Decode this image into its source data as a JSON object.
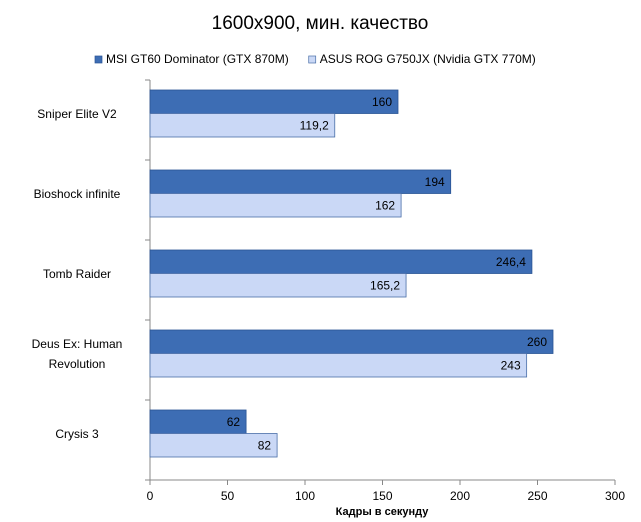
{
  "chart_data": {
    "type": "bar",
    "orientation": "horizontal",
    "title": "1600x900, мин. качество",
    "x_label": "Кадры  в секунду",
    "categories": [
      "Sniper Elite V2",
      "Bioshock infinite",
      "Tomb Raider",
      "Deus Ex: Human Revolution",
      "Crysis 3"
    ],
    "series": [
      {
        "name": "MSI GT60 Dominator (GTX 870M)",
        "color": "#3d6db4",
        "values": [
          160,
          194,
          246.4,
          260,
          62
        ],
        "value_labels": [
          "160",
          "194",
          "246,4",
          "260",
          "62"
        ]
      },
      {
        "name": "ASUS ROG G750JX (Nvidia GTX 770M)",
        "color": "#cad8f6",
        "values": [
          119.2,
          162,
          165.2,
          243,
          82
        ],
        "value_labels": [
          "119,2",
          "162",
          "165,2",
          "243",
          "82"
        ]
      }
    ],
    "xlim": [
      0,
      300
    ],
    "xticks": [
      0,
      50,
      100,
      150,
      200,
      250,
      300
    ],
    "legend": "top"
  }
}
